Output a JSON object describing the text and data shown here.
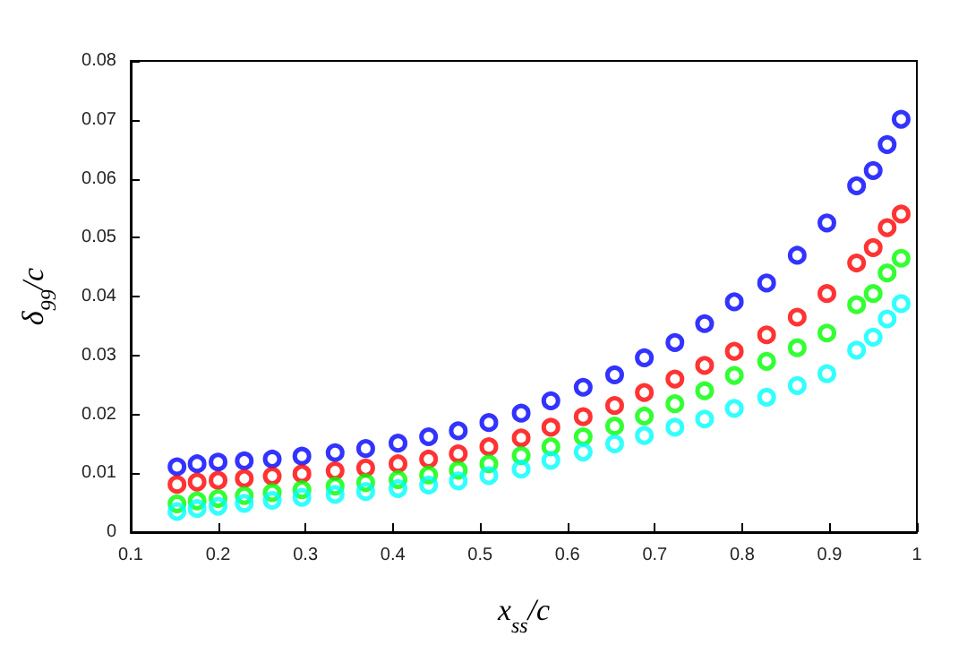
{
  "chart_data": {
    "type": "scatter",
    "xlabel": "x$_{ss}$/c",
    "ylabel": "δ$_{99}$/c",
    "x": [
      0.153,
      0.176,
      0.2,
      0.23,
      0.262,
      0.296,
      0.334,
      0.369,
      0.406,
      0.441,
      0.475,
      0.51,
      0.547,
      0.581,
      0.618,
      0.654,
      0.688,
      0.723,
      0.757,
      0.791,
      0.828,
      0.863,
      0.897,
      0.931,
      0.95,
      0.966,
      0.982
    ],
    "series": [
      {
        "color": "#0000ff",
        "values": [
          0.0111,
          0.0116,
          0.0119,
          0.0121,
          0.0124,
          0.0129,
          0.0135,
          0.0142,
          0.0151,
          0.0162,
          0.0172,
          0.0186,
          0.0202,
          0.0223,
          0.0246,
          0.0267,
          0.0296,
          0.0322,
          0.0354,
          0.0391,
          0.0423,
          0.047,
          0.0525,
          0.0588,
          0.0614,
          0.0658,
          0.0701
        ]
      },
      {
        "color": "#ff0000",
        "values": [
          0.0081,
          0.0085,
          0.0088,
          0.0091,
          0.0095,
          0.0099,
          0.0104,
          0.0109,
          0.0116,
          0.0124,
          0.0133,
          0.0145,
          0.016,
          0.0178,
          0.0196,
          0.0215,
          0.0237,
          0.026,
          0.0283,
          0.0307,
          0.0335,
          0.0365,
          0.0405,
          0.0457,
          0.0483,
          0.0517,
          0.054
        ]
      },
      {
        "color": "#00ff00",
        "values": [
          0.0048,
          0.0053,
          0.0057,
          0.0062,
          0.0067,
          0.0072,
          0.0078,
          0.0084,
          0.0089,
          0.0097,
          0.0105,
          0.0116,
          0.013,
          0.0145,
          0.0162,
          0.018,
          0.0197,
          0.0218,
          0.024,
          0.0266,
          0.029,
          0.0313,
          0.0338,
          0.0386,
          0.0405,
          0.044,
          0.0465
        ]
      },
      {
        "color": "#00ffff",
        "values": [
          0.0035,
          0.004,
          0.0044,
          0.0049,
          0.0054,
          0.0059,
          0.0064,
          0.0069,
          0.0074,
          0.008,
          0.0087,
          0.0096,
          0.0107,
          0.0122,
          0.0136,
          0.015,
          0.0164,
          0.0178,
          0.0192,
          0.021,
          0.0229,
          0.0249,
          0.0269,
          0.0309,
          0.0331,
          0.0362,
          0.0388
        ]
      }
    ],
    "xlim": [
      0.1,
      1
    ],
    "xticks": [
      0.1,
      0.2,
      0.3,
      0.4,
      0.5,
      0.6,
      0.7,
      0.8,
      0.9,
      1
    ],
    "ylim": [
      0,
      0.08
    ],
    "yticks": [
      0,
      0.01,
      0.02,
      0.03,
      0.04,
      0.05,
      0.06,
      0.07,
      0.08
    ],
    "marker": "circle"
  }
}
